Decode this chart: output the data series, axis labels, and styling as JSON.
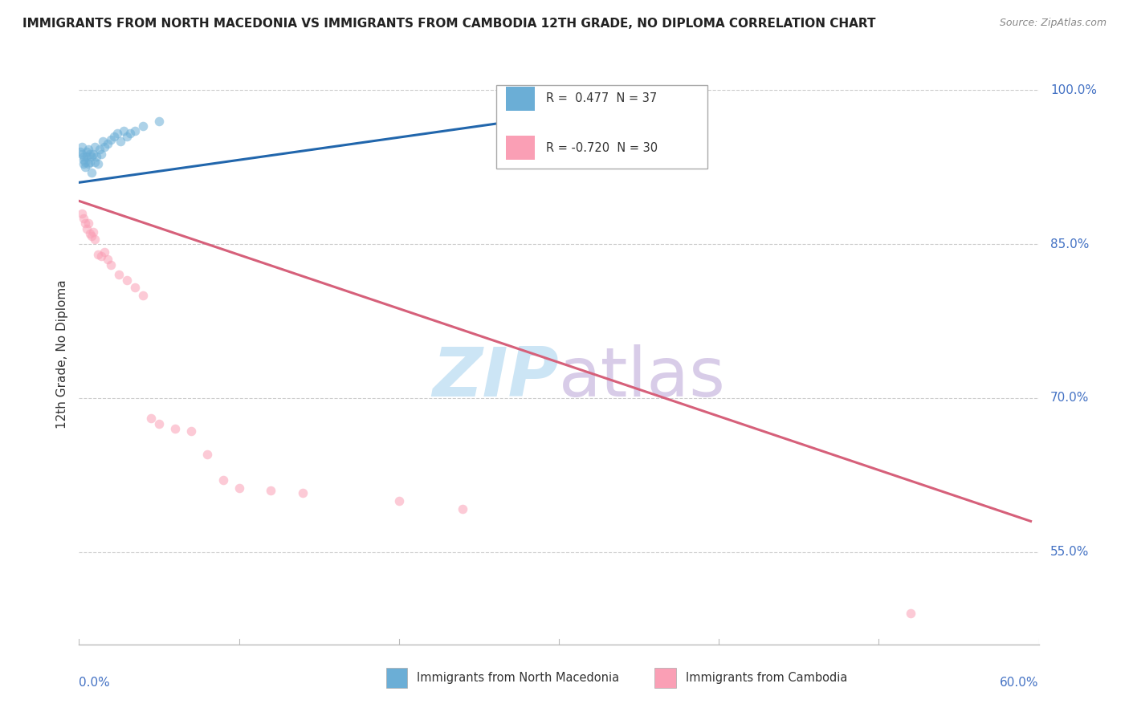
{
  "title": "IMMIGRANTS FROM NORTH MACEDONIA VS IMMIGRANTS FROM CAMBODIA 12TH GRADE, NO DIPLOMA CORRELATION CHART",
  "source": "Source: ZipAtlas.com",
  "ylabel": "12th Grade, No Diploma",
  "blue_color": "#6baed6",
  "blue_line_color": "#2166ac",
  "pink_color": "#fa9fb5",
  "pink_line_color": "#d6607a",
  "background_color": "#ffffff",
  "grid_color": "#cccccc",
  "scatter_size": 70,
  "scatter_alpha": 0.55,
  "xlim": [
    0.0,
    0.6
  ],
  "ylim": [
    0.46,
    1.025
  ],
  "ytick_positions": [
    0.55,
    0.7,
    0.85,
    1.0
  ],
  "ytick_labels": [
    "55.0%",
    "70.0%",
    "85.0%",
    "100.0%"
  ],
  "blue_scatter_x": [
    0.001,
    0.002,
    0.002,
    0.003,
    0.003,
    0.003,
    0.004,
    0.004,
    0.005,
    0.005,
    0.006,
    0.006,
    0.007,
    0.007,
    0.008,
    0.008,
    0.009,
    0.01,
    0.01,
    0.011,
    0.012,
    0.013,
    0.014,
    0.015,
    0.016,
    0.018,
    0.02,
    0.022,
    0.024,
    0.026,
    0.028,
    0.03,
    0.032,
    0.035,
    0.04,
    0.05,
    0.35
  ],
  "blue_scatter_y": [
    0.94,
    0.945,
    0.938,
    0.932,
    0.928,
    0.935,
    0.93,
    0.925,
    0.94,
    0.935,
    0.928,
    0.942,
    0.938,
    0.93,
    0.935,
    0.92,
    0.938,
    0.945,
    0.93,
    0.935,
    0.928,
    0.942,
    0.938,
    0.95,
    0.945,
    0.948,
    0.952,
    0.955,
    0.958,
    0.95,
    0.96,
    0.955,
    0.958,
    0.96,
    0.965,
    0.97,
    0.985
  ],
  "pink_scatter_x": [
    0.002,
    0.003,
    0.004,
    0.005,
    0.006,
    0.007,
    0.008,
    0.009,
    0.01,
    0.012,
    0.014,
    0.016,
    0.018,
    0.02,
    0.025,
    0.03,
    0.035,
    0.04,
    0.045,
    0.05,
    0.06,
    0.07,
    0.08,
    0.09,
    0.1,
    0.12,
    0.14,
    0.2,
    0.24,
    0.52
  ],
  "pink_scatter_y": [
    0.88,
    0.875,
    0.87,
    0.865,
    0.87,
    0.86,
    0.858,
    0.862,
    0.855,
    0.84,
    0.838,
    0.842,
    0.835,
    0.83,
    0.82,
    0.815,
    0.808,
    0.8,
    0.68,
    0.675,
    0.67,
    0.668,
    0.645,
    0.62,
    0.612,
    0.61,
    0.608,
    0.6,
    0.592,
    0.49
  ],
  "blue_line_x": [
    0.0,
    0.355
  ],
  "blue_line_y": [
    0.91,
    0.988
  ],
  "pink_line_x": [
    0.0,
    0.595
  ],
  "pink_line_y": [
    0.892,
    0.58
  ],
  "legend_r1": "R =  0.477  N = 37",
  "legend_r2": "R = -0.720  N = 30",
  "legend_label1": "Immigrants from North Macedonia",
  "legend_label2": "Immigrants from Cambodia"
}
